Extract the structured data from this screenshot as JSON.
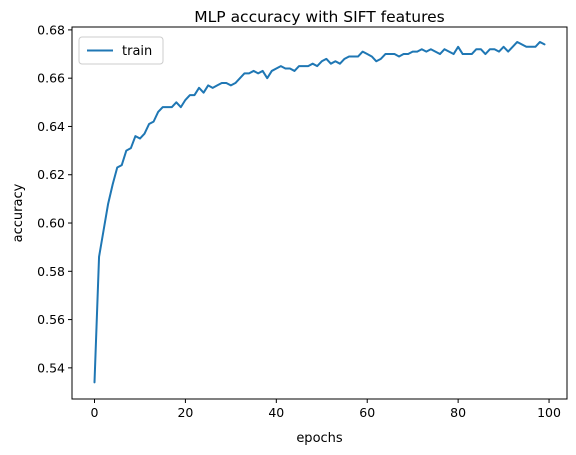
{
  "chart_data": {
    "type": "line",
    "title": "MLP accuracy with SIFT features",
    "xlabel": "epochs",
    "ylabel": "accuracy",
    "xlim": [
      -4.95,
      103.95
    ],
    "ylim": [
      0.5271,
      0.6812
    ],
    "xticks": [
      0,
      20,
      40,
      60,
      80,
      100
    ],
    "yticks": [
      0.54,
      0.56,
      0.58,
      0.6,
      0.62,
      0.64,
      0.66,
      0.68
    ],
    "grid": false,
    "legend_position": "upper left",
    "series": [
      {
        "name": "train",
        "color": "#1f77b4",
        "x": [
          0,
          1,
          2,
          3,
          4,
          5,
          6,
          7,
          8,
          9,
          10,
          11,
          12,
          13,
          14,
          15,
          16,
          17,
          18,
          19,
          20,
          21,
          22,
          23,
          24,
          25,
          26,
          27,
          28,
          29,
          30,
          31,
          32,
          33,
          34,
          35,
          36,
          37,
          38,
          39,
          40,
          41,
          42,
          43,
          44,
          45,
          46,
          47,
          48,
          49,
          50,
          51,
          52,
          53,
          54,
          55,
          56,
          57,
          58,
          59,
          60,
          61,
          62,
          63,
          64,
          65,
          66,
          67,
          68,
          69,
          70,
          71,
          72,
          73,
          74,
          75,
          76,
          77,
          78,
          79,
          80,
          81,
          82,
          83,
          84,
          85,
          86,
          87,
          88,
          89,
          90,
          91,
          92,
          93,
          94,
          95,
          96,
          97,
          98,
          99
        ],
        "y": [
          0.534,
          0.586,
          0.597,
          0.608,
          0.616,
          0.623,
          0.624,
          0.63,
          0.631,
          0.636,
          0.635,
          0.637,
          0.641,
          0.642,
          0.646,
          0.648,
          0.648,
          0.648,
          0.65,
          0.648,
          0.651,
          0.653,
          0.653,
          0.656,
          0.654,
          0.657,
          0.656,
          0.657,
          0.658,
          0.658,
          0.657,
          0.658,
          0.66,
          0.662,
          0.662,
          0.663,
          0.662,
          0.663,
          0.66,
          0.663,
          0.664,
          0.665,
          0.664,
          0.664,
          0.663,
          0.665,
          0.665,
          0.665,
          0.666,
          0.665,
          0.667,
          0.668,
          0.666,
          0.667,
          0.666,
          0.668,
          0.669,
          0.669,
          0.669,
          0.671,
          0.67,
          0.669,
          0.667,
          0.668,
          0.67,
          0.67,
          0.67,
          0.669,
          0.67,
          0.67,
          0.671,
          0.671,
          0.672,
          0.671,
          0.672,
          0.671,
          0.67,
          0.672,
          0.671,
          0.67,
          0.673,
          0.67,
          0.67,
          0.67,
          0.672,
          0.672,
          0.67,
          0.672,
          0.672,
          0.671,
          0.673,
          0.671,
          0.673,
          0.675,
          0.674,
          0.673,
          0.673,
          0.673,
          0.675,
          0.674
        ]
      }
    ]
  }
}
